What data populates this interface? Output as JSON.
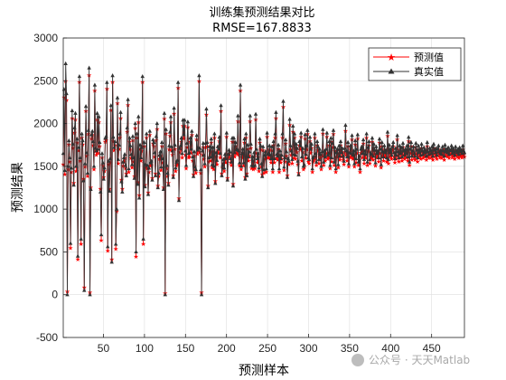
{
  "chart_data": {
    "type": "line",
    "title": "训练集预测结果对比",
    "subtitle": "RMSE=167.8833",
    "xlabel": "预测样本",
    "ylabel": "预测结果",
    "xlim": [
      1,
      490
    ],
    "ylim": [
      -500,
      3000
    ],
    "xticks": [
      50,
      100,
      150,
      200,
      250,
      300,
      350,
      400,
      450
    ],
    "yticks": [
      -500,
      0,
      500,
      1000,
      1500,
      2000,
      2500,
      3000
    ],
    "grid": true,
    "legend_position": "top-right",
    "sample_count": 490,
    "series": [
      {
        "name": "预测值",
        "color": "#ff0000",
        "marker": "star",
        "values": [
          1530,
          2310,
          1410,
          2500,
          2280,
          40,
          1470,
          1760,
          1560,
          550,
          1440,
          2070,
          1720,
          1310,
          1900,
          2050,
          1450,
          1780,
          420,
          1690,
          2490,
          1570,
          600,
          1840,
          1760,
          1360,
          90,
          1500,
          2150,
          1630,
          1390,
          1880,
          2570,
          30,
          1260,
          1830,
          1870,
          1750,
          1470,
          2390,
          1680,
          1640,
          2050,
          1660,
          2020,
          1740,
          1240,
          640,
          1610,
          1510,
          1380,
          1450,
          1790,
          1810,
          2410,
          520,
          1530,
          1240,
          1550,
          2160,
          420,
          2490,
          1800,
          1690,
          1750,
          540,
          980,
          2240,
          1540,
          1710,
          1840,
          2070,
          1350,
          1240,
          1510,
          1560,
          1600,
          1480,
          1420,
          1910,
          2220,
          1440,
          1790,
          1700,
          1600,
          1490,
          1810,
          1560,
          1390,
          1950,
          450,
          1840,
          1320,
          2020,
          1170,
          1710,
          1570,
          1680,
          2490,
          600,
          1740,
          1290,
          1490,
          1840,
          1480,
          1200,
          1440,
          1870,
          1510,
          1520,
          1370,
          1770,
          1740,
          1620,
          1420,
          1810,
          1940,
          1280,
          1390,
          1590,
          1630,
          1460,
          1740,
          1550,
          1260,
          2060,
          20,
          1890,
          1480,
          1390,
          1310,
          1700,
          1860,
          2020,
          1690,
          1640,
          1400,
          2120,
          1710,
          1450,
          1510,
          1530,
          2420,
          1130,
          1670,
          1700,
          1790,
          1610,
          1980,
          1830,
          1980,
          1640,
          1480,
          1730,
          1960,
          1610,
          1620,
          1790,
          1660,
          1870,
          1570,
          1410,
          1630,
          1460,
          1430,
          1820,
          1650,
          1680,
          2500,
          1670,
          1430,
          30,
          1640,
          1730,
          1590,
          1500,
          1730,
          2110,
          1740,
          1280,
          1560,
          1690,
          1570,
          1780,
          1490,
          1680,
          1470,
          1840,
          1330,
          1620,
          1530,
          1690,
          1660,
          1800,
          1610,
          2150,
          1420,
          1480,
          1540,
          1450,
          1600,
          1550,
          1850,
          1370,
          1600,
          1650,
          1630,
          1550,
          1520,
          1790,
          1300,
          1790,
          1620,
          1740,
          1650,
          1660,
          2030,
          1640,
          1510,
          2390,
          1470,
          1610,
          1660,
          1510,
          1780,
          1380,
          1840,
          1420,
          1710,
          1570,
          1630,
          2030,
          1720,
          1480,
          1570,
          1470,
          1620,
          1480,
          2050,
          1660,
          1550,
          1610,
          1450,
          1780,
          1700,
          1500,
          1410,
          1690,
          1430,
          1590,
          1630,
          1440,
          1850,
          1600,
          1610,
          1700,
          1590,
          1550,
          1690,
          1440,
          1750,
          1550,
          1840,
          2070,
          1600,
          1580,
          1710,
          1440,
          1640,
          1550,
          1590,
          1840,
          2200,
          1460,
          1560,
          1770,
          1630,
          1400,
          1550,
          1530,
          1990,
          1700,
          1640,
          1540,
          1910,
          1600,
          1840,
          1590,
          1720,
          1670,
          1530,
          1430,
          1750,
          1700,
          1850,
          1570,
          1670,
          1470,
          1490,
          1830,
          1600,
          1700,
          1880,
          1560,
          1540,
          1800,
          1660,
          1720,
          1440,
          1560,
          1580,
          1840,
          1610,
          1520,
          1750,
          1690,
          1540,
          1660,
          1600,
          1470,
          1630,
          1890,
          1520,
          1640,
          1570,
          1660,
          1850,
          1590,
          1610,
          1750,
          1480,
          1790,
          1560,
          1730,
          1880,
          1520,
          1680,
          1440,
          1620,
          1660,
          1490,
          1700,
          1580,
          1750,
          1620,
          1670,
          1580,
          1530,
          1670,
          1920,
          1640,
          1570,
          1740,
          1500,
          1620,
          1700,
          1610,
          1820,
          1590,
          1640,
          1500,
          1760,
          1550,
          1660,
          1830,
          1520,
          1580,
          1440,
          1660,
          1690,
          1610,
          1770,
          1540,
          1640,
          1600,
          1840,
          1520,
          1680,
          1750,
          1540,
          1620,
          1600,
          1790,
          1580,
          1720,
          1650,
          1510,
          1690,
          1610,
          1640,
          1560,
          1780,
          1660,
          1490,
          1740,
          1630,
          1570,
          1700,
          1620,
          1650,
          1560,
          1860,
          1540,
          1710,
          1620,
          1660,
          1590,
          1690,
          1740,
          1620,
          1550,
          1670,
          1590,
          1820,
          1630,
          1560,
          1700,
          1610,
          1680,
          1570,
          1730,
          1640,
          1590,
          1660,
          1610,
          1700,
          1570,
          1800,
          1520,
          1660,
          1740,
          1580,
          1640,
          1690,
          1610,
          1580,
          1730,
          1650,
          1560,
          1700,
          1620,
          1660,
          1590,
          1720,
          1640,
          1600,
          1680,
          1620,
          1650,
          1580,
          1740,
          1630,
          1600,
          1670,
          1640,
          1610,
          1690,
          1580,
          1720,
          1650,
          1620,
          1670,
          1590,
          1660,
          1700,
          1630,
          1610,
          1650,
          1600,
          1690,
          1640,
          1580,
          1710,
          1630,
          1660,
          1620,
          1680,
          1600,
          1650,
          1640,
          1700,
          1610,
          1670,
          1630,
          1590,
          1690,
          1640,
          1620,
          1660,
          1600,
          1680,
          1630,
          1650,
          1610,
          1700,
          1640,
          1620
        ]
      },
      {
        "name": "真实值",
        "color": "#333333",
        "marker": "triangle",
        "values": [
          1650,
          2400,
          1450,
          2700,
          2350,
          0,
          1500,
          1800,
          1600,
          600,
          1480,
          2150,
          1760,
          1280,
          1950,
          2120,
          1500,
          1820,
          450,
          1720,
          2550,
          1600,
          650,
          1880,
          1800,
          1330,
          50,
          1530,
          2200,
          1660,
          1420,
          1920,
          2650,
          0,
          1230,
          1870,
          1910,
          1790,
          1500,
          2450,
          1710,
          1680,
          2120,
          1700,
          2080,
          1780,
          1200,
          700,
          1650,
          1540,
          1350,
          1480,
          1830,
          1850,
          2480,
          560,
          1560,
          1210,
          1590,
          2210,
          380,
          2560,
          1840,
          1720,
          1790,
          590,
          1000,
          2300,
          1580,
          1750,
          1880,
          2130,
          1320,
          1200,
          1550,
          1600,
          1640,
          1510,
          1390,
          1950,
          2280,
          1470,
          1830,
          1740,
          1640,
          1520,
          1850,
          1600,
          1360,
          2000,
          500,
          1880,
          1290,
          2080,
          1130,
          1750,
          1600,
          1720,
          2550,
          650,
          1780,
          1260,
          1520,
          1880,
          1510,
          1170,
          1480,
          1910,
          1540,
          1560,
          1340,
          1810,
          1780,
          1660,
          1390,
          1850,
          2000,
          1250,
          1420,
          1630,
          1670,
          1490,
          1780,
          1590,
          1230,
          2120,
          0,
          1930,
          1510,
          1420,
          1280,
          1740,
          1900,
          2080,
          1730,
          1680,
          1370,
          2180,
          1750,
          1480,
          1550,
          1570,
          2480,
          1100,
          1710,
          1740,
          1830,
          1650,
          2040,
          1870,
          2040,
          1680,
          1510,
          1770,
          2020,
          1650,
          1660,
          1830,
          1700,
          1910,
          1610,
          1380,
          1670,
          1490,
          1460,
          1860,
          1690,
          1720,
          2560,
          1710,
          1460,
          0,
          1680,
          1770,
          1630,
          1530,
          1770,
          2170,
          1780,
          1250,
          1600,
          1730,
          1610,
          1820,
          1520,
          1720,
          1500,
          1880,
          1300,
          1660,
          1570,
          1730,
          1700,
          1840,
          1650,
          2210,
          1390,
          1510,
          1580,
          1480,
          1640,
          1590,
          1890,
          1340,
          1640,
          1690,
          1670,
          1590,
          1550,
          1830,
          1270,
          1830,
          1660,
          1780,
          1690,
          1700,
          2090,
          1680,
          1540,
          2450,
          1500,
          1650,
          1700,
          1540,
          1820,
          1350,
          1880,
          1390,
          1750,
          1610,
          1670,
          2090,
          1760,
          1510,
          1610,
          1500,
          1660,
          1510,
          2110,
          1700,
          1590,
          1650,
          1480,
          1820,
          1740,
          1530,
          1380,
          1730,
          1460,
          1630,
          1670,
          1470,
          1890,
          1640,
          1650,
          1740,
          1630,
          1590,
          1730,
          1470,
          1790,
          1590,
          1880,
          2130,
          1640,
          1620,
          1750,
          1470,
          1680,
          1590,
          1630,
          1880,
          2260,
          1490,
          1600,
          1810,
          1670,
          1370,
          1590,
          1560,
          2050,
          1740,
          1680,
          1580,
          1970,
          1640,
          1880,
          1630,
          1760,
          1710,
          1560,
          1400,
          1790,
          1740,
          1890,
          1610,
          1710,
          1500,
          1520,
          1870,
          1640,
          1740,
          1920,
          1600,
          1580,
          1840,
          1700,
          1760,
          1470,
          1600,
          1620,
          1880,
          1650,
          1550,
          1790,
          1730,
          1580,
          1700,
          1640,
          1500,
          1670,
          1930,
          1550,
          1680,
          1610,
          1700,
          1890,
          1630,
          1650,
          1790,
          1510,
          1830,
          1600,
          1770,
          1920,
          1550,
          1720,
          1470,
          1660,
          1700,
          1520,
          1740,
          1620,
          1790,
          1660,
          1710,
          1620,
          1560,
          1710,
          1980,
          1680,
          1610,
          1780,
          1530,
          1660,
          1740,
          1650,
          1860,
          1630,
          1680,
          1530,
          1800,
          1590,
          1700,
          1870,
          1550,
          1620,
          1470,
          1700,
          1730,
          1650,
          1810,
          1580,
          1680,
          1640,
          1880,
          1550,
          1720,
          1790,
          1580,
          1660,
          1640,
          1830,
          1620,
          1760,
          1690,
          1540,
          1730,
          1650,
          1680,
          1600,
          1820,
          1700,
          1520,
          1780,
          1670,
          1610,
          1740,
          1660,
          1690,
          1600,
          1900,
          1580,
          1750,
          1660,
          1700,
          1630,
          1730,
          1780,
          1660,
          1590,
          1710,
          1630,
          1860,
          1670,
          1600,
          1740,
          1650,
          1720,
          1610,
          1770,
          1680,
          1630,
          1700,
          1650,
          1740,
          1610,
          1840,
          1550,
          1700,
          1780,
          1620,
          1680,
          1730,
          1650,
          1620,
          1770,
          1690,
          1600,
          1740,
          1660,
          1700,
          1630,
          1760,
          1680,
          1640,
          1720,
          1660,
          1690,
          1620,
          1780,
          1670,
          1640,
          1710,
          1680,
          1650,
          1730,
          1620,
          1760,
          1690,
          1660,
          1710,
          1630,
          1700,
          1740,
          1670,
          1650,
          1690,
          1640,
          1730,
          1680,
          1620,
          1750,
          1670,
          1700,
          1660,
          1720,
          1640,
          1690,
          1680,
          1740,
          1650,
          1710,
          1670,
          1630,
          1730,
          1680,
          1660,
          1700,
          1640,
          1720,
          1670,
          1690,
          1650,
          1740,
          1680,
          1660
        ]
      }
    ]
  },
  "watermark_text": "公众号 · 天天Matlab"
}
